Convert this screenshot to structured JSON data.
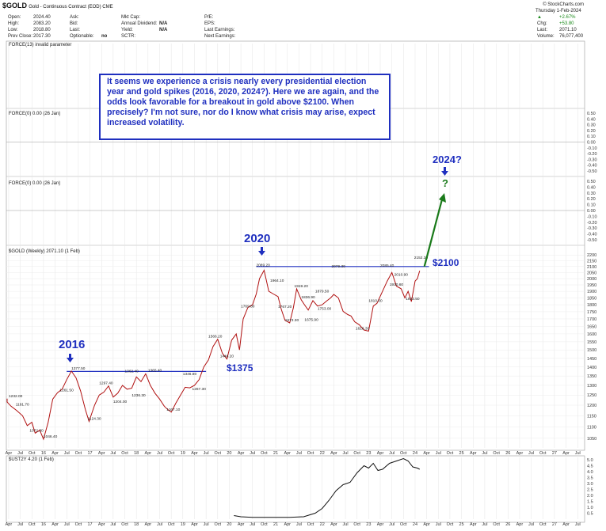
{
  "header": {
    "symbol": "$GOLD",
    "name": "Gold - Continuous Contract (EOD) CME",
    "watermark": "© StockCharts.com",
    "date": "Thursday  1-Feb-2024",
    "stats_left": [
      {
        "label": "Open:",
        "value": "2024.40"
      },
      {
        "label": "High:",
        "value": "2083.20"
      },
      {
        "label": "Low:",
        "value": "2018.80"
      },
      {
        "label": "Prev Close:",
        "value": "2017.30"
      }
    ],
    "stats_mid": [
      {
        "label": "Ask:",
        "value": ""
      },
      {
        "label": "Bid:",
        "value": ""
      },
      {
        "label": "Last:",
        "value": ""
      },
      {
        "label": "Optionable:",
        "value": "no"
      }
    ],
    "stats_mid2": [
      {
        "label": "Mkt Cap:",
        "value": ""
      },
      {
        "label": "Annual Dividend:",
        "value": "N/A"
      },
      {
        "label": "Yield:",
        "value": "N/A"
      },
      {
        "label": "SCTR:",
        "value": ""
      }
    ],
    "stats_mid3": [
      {
        "label": "P/E:"
      },
      {
        "label": "EPS:"
      },
      {
        "label": "Last Earnings:"
      },
      {
        "label": "Next Earnings:"
      }
    ],
    "change_pct": "+2.67%",
    "stats_right": [
      {
        "label": "Chg:",
        "value": "+53.80"
      },
      {
        "label": "Last:",
        "value": "2071.10"
      },
      {
        "label": "Volume:",
        "value": "76,077,400"
      }
    ],
    "accent_green": "#1a8a1a"
  },
  "panels": {
    "force13": "FORCE(13) invalid parameter",
    "force_a": "FORCE(0) 0.00 (26 Jan)",
    "force_b": "FORCE(0) 0.00 (26 Jan)",
    "gold": "$GOLD (Weekly) 2071.10 (1 Feb)",
    "ust": "$UST2Y 4.20 (1 Feb)"
  },
  "annotations": {
    "callout": "It seems we experience a crisis nearly every presidential election year and gold spikes (2016, 2020, 2024?). Here we are again, and the odds look favorable for a breakout in gold above $2100. When precisely? I'm not sure, nor do I know what crisis may arise, expect increased volatility.",
    "y2016": "2016",
    "y2020": "2020",
    "y2024": "2024?",
    "q": "?",
    "l1375": "$1375",
    "l2100": "$2100",
    "color_blue": "#1f2fbf",
    "color_green": "#1a7a1a"
  },
  "chart_data": [
    {
      "type": "line",
      "name": "$GOLD (Weekly) 2071.10 (1 Feb)",
      "x_tick_labels": [
        "Apr",
        "Jul",
        "Oct",
        "16",
        "Apr",
        "Jul",
        "Oct",
        "17",
        "Apr",
        "Jul",
        "Oct",
        "18",
        "Apr",
        "Jul",
        "Oct",
        "19",
        "Apr",
        "Jul",
        "Oct",
        "20",
        "Apr",
        "Jul",
        "Oct",
        "21",
        "Apr",
        "Jul",
        "Oct",
        "22",
        "Apr",
        "Jul",
        "Oct",
        "23",
        "Apr",
        "Jul",
        "Oct",
        "24",
        "Apr",
        "Jul",
        "Oct",
        "25",
        "Apr",
        "Jul",
        "Oct",
        "26",
        "Apr",
        "Jul",
        "Oct",
        "27",
        "Apr",
        "Jul"
      ],
      "x_range": [
        2015.2,
        2027.65
      ],
      "y_scale": "log",
      "y_ticks": [
        1050,
        1100,
        1150,
        1200,
        1250,
        1300,
        1350,
        1400,
        1450,
        1500,
        1550,
        1600,
        1650,
        1700,
        1750,
        1800,
        1850,
        1900,
        1950,
        2000,
        2050,
        2100,
        2150,
        2200
      ],
      "ylim": [
        1010,
        2230
      ],
      "series_x": [
        2015.0,
        2015.15,
        2015.3,
        2015.42,
        2015.55,
        2015.65,
        2015.75,
        2015.82,
        2015.92,
        2016.0,
        2016.1,
        2016.2,
        2016.3,
        2016.4,
        2016.5,
        2016.6,
        2016.7,
        2016.8,
        2016.9,
        2016.98,
        2017.1,
        2017.2,
        2017.3,
        2017.4,
        2017.5,
        2017.6,
        2017.7,
        2017.8,
        2017.9,
        2018.0,
        2018.1,
        2018.2,
        2018.3,
        2018.4,
        2018.5,
        2018.6,
        2018.67,
        2018.75,
        2018.85,
        2018.95,
        2019.05,
        2019.15,
        2019.25,
        2019.35,
        2019.45,
        2019.55,
        2019.65,
        2019.75,
        2019.85,
        2019.95,
        2020.05,
        2020.15,
        2020.22,
        2020.3,
        2020.4,
        2020.5,
        2020.58,
        2020.65,
        2020.75,
        2020.85,
        2020.95,
        2021.05,
        2021.12,
        2021.2,
        2021.3,
        2021.38,
        2021.45,
        2021.55,
        2021.62,
        2021.7,
        2021.8,
        2021.9,
        2022.0,
        2022.1,
        2022.18,
        2022.25,
        2022.35,
        2022.45,
        2022.55,
        2022.62,
        2022.7,
        2022.8,
        2022.9,
        2023.0,
        2023.1,
        2023.18,
        2023.3,
        2023.4,
        2023.5,
        2023.6,
        2023.7,
        2023.78,
        2023.85,
        2023.92,
        2024.0,
        2024.05,
        2024.1
      ],
      "series_y": [
        1232,
        1215,
        1195,
        1175,
        1150,
        1105,
        1120,
        1072,
        1085,
        1046,
        1120,
        1230,
        1262,
        1280,
        1330,
        1377,
        1340,
        1270,
        1180,
        1124,
        1200,
        1250,
        1265,
        1297,
        1240,
        1260,
        1300,
        1280,
        1285,
        1345,
        1320,
        1362,
        1300,
        1260,
        1230,
        1195,
        1180,
        1167,
        1210,
        1250,
        1290,
        1287,
        1300,
        1330,
        1400,
        1440,
        1520,
        1566,
        1480,
        1446,
        1560,
        1600,
        1500,
        1700,
        1780,
        1800,
        1880,
        2000,
        2069,
        1900,
        1880,
        1860,
        1767,
        1690,
        1673,
        1780,
        1919,
        1836,
        1800,
        1762,
        1830,
        1790,
        1800,
        1829,
        1850,
        1876,
        1850,
        1753,
        1730,
        1720,
        1680,
        1660,
        1625,
        1618,
        1790,
        1810,
        1900,
        1980,
        2050,
        1940,
        1920,
        1850,
        1900,
        1823,
        1980,
        2000,
        2065,
        2085,
        2100,
        2080,
        2071
      ],
      "price_labels": [
        {
          "x": 2015.05,
          "y": 1232,
          "text": "1232.00"
        },
        {
          "x": 2015.4,
          "y": 1191,
          "text": "1191.70"
        },
        {
          "x": 2015.7,
          "y": 1072,
          "text": "1072.30"
        },
        {
          "x": 2016.0,
          "y": 1046,
          "text": "1046.40"
        },
        {
          "x": 2016.35,
          "y": 1261,
          "text": "1261.50"
        },
        {
          "x": 2016.6,
          "y": 1377,
          "text": "1377.50"
        },
        {
          "x": 2016.95,
          "y": 1124,
          "text": "1124.30"
        },
        {
          "x": 2017.2,
          "y": 1297,
          "text": "1297.40"
        },
        {
          "x": 2017.5,
          "y": 1204,
          "text": "1204.00"
        },
        {
          "x": 2017.75,
          "y": 1362,
          "text": "1362.40"
        },
        {
          "x": 2017.9,
          "y": 1236,
          "text": "1236.30"
        },
        {
          "x": 2018.25,
          "y": 1365,
          "text": "1365.40"
        },
        {
          "x": 2018.65,
          "y": 1167,
          "text": "1167.10"
        },
        {
          "x": 2019.0,
          "y": 1346,
          "text": "1346.80"
        },
        {
          "x": 2019.2,
          "y": 1267,
          "text": "1267.30"
        },
        {
          "x": 2019.55,
          "y": 1566,
          "text": "1566.20"
        },
        {
          "x": 2019.8,
          "y": 1446,
          "text": "1446.20"
        },
        {
          "x": 2020.25,
          "y": 1769,
          "text": "1769.80"
        },
        {
          "x": 2020.58,
          "y": 2089,
          "text": "2089.20"
        },
        {
          "x": 2020.88,
          "y": 1964,
          "text": "1964.10"
        },
        {
          "x": 2021.05,
          "y": 1767,
          "text": "1767.20"
        },
        {
          "x": 2021.2,
          "y": 1673,
          "text": "1673.30"
        },
        {
          "x": 2021.4,
          "y": 1919,
          "text": "1919.20"
        },
        {
          "x": 2021.55,
          "y": 1836,
          "text": "1836.90"
        },
        {
          "x": 2021.62,
          "y": 1675,
          "text": "1675.90"
        },
        {
          "x": 2021.85,
          "y": 1879,
          "text": "1879.50"
        },
        {
          "x": 2021.9,
          "y": 1753,
          "text": "1753.00"
        },
        {
          "x": 2022.2,
          "y": 2079,
          "text": "2079.30"
        },
        {
          "x": 2022.72,
          "y": 1618,
          "text": "1618.30"
        },
        {
          "x": 2023.0,
          "y": 1810,
          "text": "1810.00"
        },
        {
          "x": 2023.25,
          "y": 2085,
          "text": "2085.40"
        },
        {
          "x": 2023.45,
          "y": 1930,
          "text": "1930.60"
        },
        {
          "x": 2023.55,
          "y": 2010,
          "text": "2010.90"
        },
        {
          "x": 2023.8,
          "y": 1823,
          "text": "1823.50"
        },
        {
          "x": 2023.98,
          "y": 2152,
          "text": "2152.30"
        }
      ],
      "levels": [
        {
          "value": 1375,
          "x_start": 2016.5,
          "x_end": 2019.5
        },
        {
          "value": 2100,
          "x_start": 2020.58,
          "x_end": 2024.3
        }
      ],
      "projection": {
        "x_start": 2024.2,
        "y_start": 2100
      }
    },
    {
      "type": "line",
      "name": "$UST2Y 4.20 (1 Feb)",
      "ylim": [
        0,
        5.2
      ],
      "y_ticks": [
        0.5,
        1.0,
        1.5,
        2.0,
        2.5,
        3.0,
        3.5,
        4.0,
        4.5,
        5.0
      ],
      "series_x": [
        2020.1,
        2020.25,
        2020.5,
        2020.75,
        2021.0,
        2021.3,
        2021.6,
        2021.85,
        2022.0,
        2022.15,
        2022.3,
        2022.45,
        2022.6,
        2022.75,
        2022.9,
        2023.0,
        2023.1,
        2023.2,
        2023.3,
        2023.45,
        2023.6,
        2023.75,
        2023.85,
        2023.95,
        2024.05,
        2024.1
      ],
      "series_y": [
        0.3,
        0.2,
        0.15,
        0.15,
        0.15,
        0.15,
        0.2,
        0.5,
        0.9,
        1.6,
        2.4,
        2.9,
        3.1,
        3.9,
        4.5,
        4.3,
        4.7,
        4.1,
        4.2,
        4.7,
        4.9,
        5.1,
        4.9,
        4.4,
        4.3,
        4.2
      ]
    },
    {
      "type": "line",
      "name": "FORCE(0) 0.00 (26 Jan)",
      "ylim": [
        -0.5,
        0.5
      ],
      "y_ticks": [
        0.5,
        0.4,
        0.3,
        0.2,
        0.1,
        0.0,
        -0.1,
        -0.2,
        -0.3,
        -0.4,
        -0.5
      ]
    }
  ]
}
